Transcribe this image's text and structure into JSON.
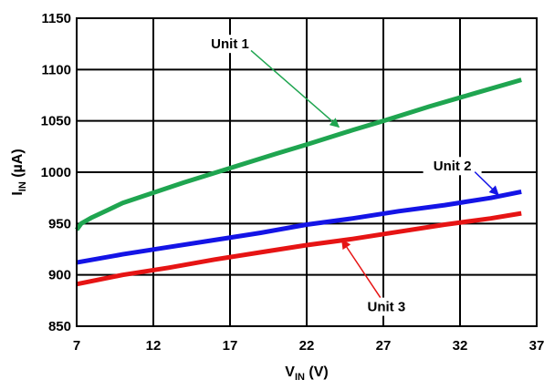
{
  "chart_data": {
    "type": "line",
    "xlabel": {
      "main": "V",
      "sub": "IN",
      "unit": " (V)"
    },
    "ylabel": {
      "main": "I",
      "sub": "IN",
      "unit": " (µA)"
    },
    "xlim": [
      7,
      37
    ],
    "ylim": [
      850,
      1150
    ],
    "x_ticks": [
      7,
      12,
      17,
      22,
      27,
      32,
      37
    ],
    "y_ticks": [
      850,
      900,
      950,
      1000,
      1050,
      1100,
      1150
    ],
    "grid": true,
    "legend": "none",
    "series": [
      {
        "name": "Unit 1",
        "color": "#1fa550",
        "x": [
          7,
          7.3,
          8,
          9,
          10,
          12,
          14,
          17,
          20,
          22,
          25,
          27,
          30,
          33,
          36
        ],
        "y": [
          944,
          950,
          956,
          963,
          970,
          980,
          990,
          1004,
          1018,
          1027,
          1041,
          1050,
          1064,
          1077,
          1090
        ]
      },
      {
        "name": "Unit 2",
        "color": "#1414e6",
        "x": [
          7,
          10,
          13,
          16,
          19,
          22,
          25,
          28,
          31,
          34,
          36
        ],
        "y": [
          912,
          920,
          927,
          934,
          941,
          949,
          955,
          962,
          968,
          975,
          981
        ]
      },
      {
        "name": "Unit 3",
        "color": "#e61414",
        "x": [
          7,
          10,
          13,
          16,
          19,
          22,
          25,
          28,
          31,
          34,
          36
        ],
        "y": [
          891,
          900,
          907,
          915,
          922,
          929,
          935,
          942,
          949,
          955,
          960
        ]
      }
    ],
    "annotations": [
      {
        "text": "Unit 1",
        "series": 0,
        "label_x": 17,
        "label_y": 1125,
        "point_x": 24.1,
        "point_y": 1044
      },
      {
        "text": "Unit 2",
        "series": 1,
        "label_x": 31.5,
        "label_y": 1006,
        "point_x": 34.5,
        "point_y": 978
      },
      {
        "text": "Unit 3",
        "series": 2,
        "label_x": 27.2,
        "label_y": 869,
        "point_x": 24.3,
        "point_y": 934
      }
    ]
  }
}
